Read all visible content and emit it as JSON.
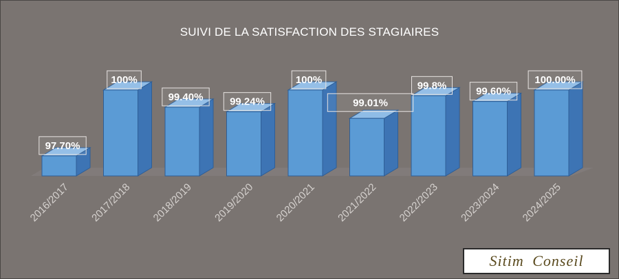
{
  "chart_data": {
    "type": "bar",
    "title": "SUIVI DE LA SATISFACTION DES STAGIAIRES",
    "categories": [
      "2016/2017",
      "2017/2018",
      "2018/2019",
      "2019/2020",
      "2020/2021",
      "2021/2022",
      "2022/2023",
      "2023/2024",
      "2024/2025"
    ],
    "values": [
      97.7,
      100,
      99.4,
      99.24,
      100,
      99.01,
      99.8,
      99.6,
      100
    ],
    "data_labels": [
      "97.70%",
      "100%",
      "99.40%",
      "99.24%",
      "100%",
      "99.01%",
      "99.8%",
      "99.60%",
      "100.00%"
    ],
    "ylim": [
      97,
      100
    ],
    "grid": false,
    "legend": false,
    "style": "3d-columns",
    "colors": {
      "background": "#7a7471",
      "bar_front": "#5b9bd5",
      "bar_side": "#3d74b4",
      "bar_top": "#8fbce6",
      "bar_edge": "#2e5e96",
      "label_text": "#ffffff",
      "tick_text": "#d6d2cf"
    }
  },
  "brand": {
    "name": "Sitim Conseil"
  }
}
